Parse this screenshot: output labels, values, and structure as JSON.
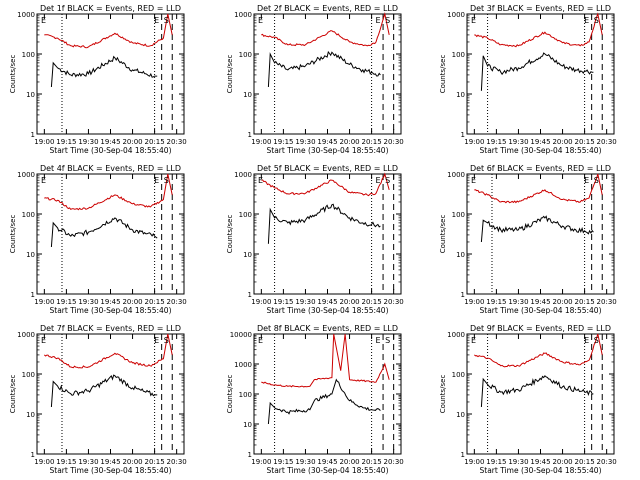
{
  "chart_data": [
    {
      "type": "line",
      "title": "Det 1f BLACK = Events, RED = LLD",
      "xlabel": "Start Time (30-Sep-04 18:55:40)",
      "ylabel": "Counts/sec",
      "x_ticks": [
        "19:00",
        "19:15",
        "19:30",
        "19:45",
        "20:00",
        "20:15",
        "20:30"
      ],
      "y_ticks": [
        "1",
        "10",
        "100",
        "1000"
      ],
      "ylim": [
        1,
        1000
      ],
      "xlim": [
        "18:55",
        "20:35"
      ],
      "markers": [
        "E",
        "S"
      ],
      "series": [
        {
          "name": "Events",
          "color": "#000000",
          "x": [
            19.08,
            19.1,
            19.15,
            19.3,
            19.5,
            19.8,
            20.0,
            20.15,
            20.25,
            20.28
          ],
          "values": [
            15,
            60,
            45,
            30,
            32,
            80,
            40,
            32,
            28,
            28
          ]
        },
        {
          "name": "LLD",
          "color": "#cc0000",
          "x": [
            19.0,
            19.15,
            19.3,
            19.5,
            19.8,
            20.0,
            20.2,
            20.35,
            20.4,
            20.45
          ],
          "values": [
            300,
            250,
            160,
            150,
            330,
            190,
            160,
            250,
            1000,
            300
          ]
        }
      ],
      "vlines": [
        {
          "x": 19.2,
          "style": "dotted"
        },
        {
          "x": 20.25,
          "style": "dotted"
        },
        {
          "x": 20.33,
          "style": "dashed"
        },
        {
          "x": 20.45,
          "style": "dashed"
        }
      ]
    },
    {
      "type": "line",
      "title": "Det 2f BLACK = Events, RED = LLD",
      "xlabel": "Start Time (30-Sep-04 18:55:40)",
      "ylabel": "Counts/sec",
      "x_ticks": [
        "19:00",
        "19:15",
        "19:30",
        "19:45",
        "20:00",
        "20:15",
        "20:30"
      ],
      "y_ticks": [
        "1",
        "10",
        "100",
        "1000"
      ],
      "ylim": [
        1,
        1000
      ],
      "xlim": [
        "18:55",
        "20:35"
      ],
      "markers": [
        "E",
        "S"
      ],
      "series": [
        {
          "name": "Events",
          "color": "#000000",
          "x": [
            19.08,
            19.1,
            19.15,
            19.3,
            19.5,
            19.8,
            20.0,
            20.15,
            20.25,
            20.35
          ],
          "values": [
            15,
            100,
            60,
            40,
            50,
            110,
            55,
            40,
            35,
            30
          ]
        },
        {
          "name": "LLD",
          "color": "#cc0000",
          "x": [
            19.0,
            19.15,
            19.3,
            19.5,
            19.8,
            20.0,
            20.2,
            20.3,
            20.4,
            20.45
          ],
          "values": [
            300,
            260,
            170,
            170,
            380,
            200,
            160,
            200,
            1000,
            300
          ]
        }
      ],
      "vlines": [
        {
          "x": 19.15,
          "style": "dotted"
        },
        {
          "x": 20.25,
          "style": "dotted"
        },
        {
          "x": 20.38,
          "style": "dashed"
        },
        {
          "x": 20.5,
          "style": "dashed"
        }
      ]
    },
    {
      "type": "line",
      "title": "Det 3f BLACK = Events, RED = LLD",
      "xlabel": "Start Time (30-Sep-04 18:55:40)",
      "ylabel": "Counts/sec",
      "x_ticks": [
        "19:00",
        "19:15",
        "19:30",
        "19:45",
        "20:00",
        "20:15",
        "20:30"
      ],
      "y_ticks": [
        "1",
        "10",
        "100",
        "1000"
      ],
      "ylim": [
        1,
        1000
      ],
      "xlim": [
        "18:55",
        "20:35"
      ],
      "markers": [
        "E",
        "S"
      ],
      "series": [
        {
          "name": "Events",
          "color": "#000000",
          "x": [
            19.08,
            19.1,
            19.15,
            19.3,
            19.5,
            19.8,
            20.0,
            20.15,
            20.25,
            20.35
          ],
          "values": [
            12,
            90,
            50,
            35,
            45,
            100,
            50,
            40,
            38,
            35
          ]
        },
        {
          "name": "LLD",
          "color": "#cc0000",
          "x": [
            19.0,
            19.15,
            19.3,
            19.5,
            19.8,
            20.0,
            20.2,
            20.3,
            20.4,
            20.45
          ],
          "values": [
            300,
            250,
            170,
            160,
            350,
            190,
            160,
            200,
            1000,
            300
          ]
        }
      ],
      "vlines": [
        {
          "x": 19.15,
          "style": "dotted"
        },
        {
          "x": 20.25,
          "style": "dotted"
        },
        {
          "x": 20.33,
          "style": "dashed"
        },
        {
          "x": 20.45,
          "style": "dashed"
        }
      ]
    },
    {
      "type": "line",
      "title": "Det 4f BLACK = Events, RED = LLD",
      "xlabel": "Start Time (30-Sep-04 18:55:40)",
      "ylabel": "Counts/sec",
      "x_ticks": [
        "19:00",
        "19:15",
        "19:30",
        "19:45",
        "20:00",
        "20:15",
        "20:30"
      ],
      "y_ticks": [
        "1",
        "10",
        "100",
        "1000"
      ],
      "ylim": [
        1,
        1000
      ],
      "xlim": [
        "18:55",
        "20:35"
      ],
      "markers": [
        "E",
        "S"
      ],
      "series": [
        {
          "name": "Events",
          "color": "#000000",
          "x": [
            19.08,
            19.1,
            19.15,
            19.3,
            19.5,
            19.8,
            20.0,
            20.15,
            20.25,
            20.28
          ],
          "values": [
            15,
            60,
            45,
            28,
            35,
            80,
            40,
            32,
            28,
            25
          ]
        },
        {
          "name": "LLD",
          "color": "#cc0000",
          "x": [
            19.0,
            19.15,
            19.3,
            19.5,
            19.8,
            20.0,
            20.2,
            20.35,
            20.4,
            20.45
          ],
          "values": [
            250,
            220,
            130,
            140,
            300,
            180,
            150,
            230,
            1000,
            300
          ]
        }
      ],
      "vlines": [
        {
          "x": 19.2,
          "style": "dotted"
        },
        {
          "x": 20.25,
          "style": "dotted"
        },
        {
          "x": 20.33,
          "style": "dashed"
        },
        {
          "x": 20.45,
          "style": "dashed"
        }
      ]
    },
    {
      "type": "line",
      "title": "Det 5f BLACK = Events, RED = LLD",
      "xlabel": "Start Time (30-Sep-04 18:55:40)",
      "ylabel": "Counts/sec",
      "x_ticks": [
        "19:00",
        "19:15",
        "19:30",
        "19:45",
        "20:00",
        "20:15",
        "20:30"
      ],
      "y_ticks": [
        "1",
        "10",
        "100",
        "1000"
      ],
      "ylim": [
        1,
        1000
      ],
      "xlim": [
        "18:55",
        "20:35"
      ],
      "markers": [
        "E",
        "S"
      ],
      "series": [
        {
          "name": "Events",
          "color": "#000000",
          "x": [
            19.08,
            19.1,
            19.15,
            19.3,
            19.5,
            19.8,
            20.0,
            20.15,
            20.25,
            20.35
          ],
          "values": [
            18,
            130,
            80,
            60,
            70,
            170,
            80,
            60,
            55,
            50
          ]
        },
        {
          "name": "LLD",
          "color": "#cc0000",
          "x": [
            19.0,
            19.15,
            19.3,
            19.5,
            19.8,
            20.0,
            20.2,
            20.3,
            20.4,
            20.45
          ],
          "values": [
            700,
            450,
            320,
            330,
            700,
            350,
            300,
            330,
            1000,
            400
          ]
        }
      ],
      "vlines": [
        {
          "x": 19.15,
          "style": "dotted"
        },
        {
          "x": 20.25,
          "style": "dotted"
        },
        {
          "x": 20.38,
          "style": "dashed"
        },
        {
          "x": 20.5,
          "style": "dashed"
        }
      ]
    },
    {
      "type": "line",
      "title": "Det 6f BLACK = Events, RED = LLD",
      "xlabel": "Start Time (30-Sep-04 18:55:40)",
      "ylabel": "Counts/sec",
      "x_ticks": [
        "19:00",
        "19:15",
        "19:30",
        "19:45",
        "20:00",
        "20:15",
        "20:30"
      ],
      "y_ticks": [
        "1",
        "10",
        "100",
        "1000"
      ],
      "ylim": [
        1,
        1000
      ],
      "xlim": [
        "18:55",
        "20:35"
      ],
      "markers": [
        "E",
        "S"
      ],
      "series": [
        {
          "name": "Events",
          "color": "#000000",
          "x": [
            19.08,
            19.1,
            19.15,
            19.3,
            19.5,
            19.8,
            20.0,
            20.15,
            20.25,
            20.35
          ],
          "values": [
            20,
            70,
            60,
            40,
            40,
            80,
            50,
            40,
            38,
            35
          ]
        },
        {
          "name": "LLD",
          "color": "#cc0000",
          "x": [
            19.0,
            19.15,
            19.3,
            19.5,
            19.8,
            20.0,
            20.2,
            20.3,
            20.4,
            20.45
          ],
          "values": [
            400,
            300,
            200,
            200,
            400,
            230,
            200,
            250,
            1000,
            300
          ]
        }
      ],
      "vlines": [
        {
          "x": 19.2,
          "style": "dotted"
        },
        {
          "x": 20.25,
          "style": "dotted"
        },
        {
          "x": 20.33,
          "style": "dashed"
        },
        {
          "x": 20.45,
          "style": "dashed"
        }
      ]
    },
    {
      "type": "line",
      "title": "Det 7f BLACK = Events, RED = LLD",
      "xlabel": "Start Time (30-Sep-04 18:55:40)",
      "ylabel": "Counts/sec",
      "x_ticks": [
        "19:00",
        "19:15",
        "19:30",
        "19:45",
        "20:00",
        "20:15",
        "20:30"
      ],
      "y_ticks": [
        "1",
        "10",
        "100",
        "1000"
      ],
      "ylim": [
        1,
        1000
      ],
      "xlim": [
        "18:55",
        "20:35"
      ],
      "markers": [
        "E",
        "S"
      ],
      "series": [
        {
          "name": "Events",
          "color": "#000000",
          "x": [
            19.08,
            19.1,
            19.15,
            19.3,
            19.5,
            19.8,
            20.0,
            20.15,
            20.25,
            20.28
          ],
          "values": [
            15,
            65,
            50,
            32,
            38,
            90,
            45,
            35,
            30,
            30
          ]
        },
        {
          "name": "LLD",
          "color": "#cc0000",
          "x": [
            19.0,
            19.15,
            19.3,
            19.5,
            19.8,
            20.0,
            20.2,
            20.35,
            20.4,
            20.45
          ],
          "values": [
            300,
            250,
            150,
            150,
            330,
            190,
            160,
            240,
            1000,
            300
          ]
        }
      ],
      "vlines": [
        {
          "x": 19.2,
          "style": "dotted"
        },
        {
          "x": 20.25,
          "style": "dotted"
        },
        {
          "x": 20.33,
          "style": "dashed"
        },
        {
          "x": 20.45,
          "style": "dashed"
        }
      ]
    },
    {
      "type": "line",
      "title": "Det 8f BLACK = Events, RED = LLD",
      "xlabel": "Start Time (30-Sep-04 18:55:40)",
      "ylabel": "Counts/sec",
      "x_ticks": [
        "19:00",
        "19:15",
        "19:30",
        "19:45",
        "20:00",
        "20:15",
        "20:30"
      ],
      "y_ticks": [
        "1",
        "10",
        "100",
        "1000",
        "10000"
      ],
      "ylim": [
        1,
        10000
      ],
      "xlim": [
        "18:55",
        "20:35"
      ],
      "markers": [
        "E",
        "S"
      ],
      "series": [
        {
          "name": "Events",
          "color": "#000000",
          "x": [
            19.08,
            19.1,
            19.15,
            19.3,
            19.55,
            19.6,
            19.8,
            19.85,
            20.0,
            20.15,
            20.25,
            20.35
          ],
          "values": [
            10,
            50,
            35,
            25,
            30,
            60,
            100,
            300,
            60,
            35,
            30,
            28
          ]
        },
        {
          "name": "LLD",
          "color": "#cc0000",
          "x": [
            19.0,
            19.15,
            19.3,
            19.55,
            19.6,
            19.8,
            19.82,
            19.9,
            19.95,
            20.0,
            20.3,
            20.4,
            20.45
          ],
          "values": [
            250,
            200,
            180,
            180,
            300,
            350,
            10000,
            600,
            10000,
            300,
            250,
            1000,
            300
          ]
        }
      ],
      "vlines": [
        {
          "x": 19.15,
          "style": "dotted"
        },
        {
          "x": 20.25,
          "style": "dotted"
        },
        {
          "x": 20.38,
          "style": "dashed"
        },
        {
          "x": 20.5,
          "style": "dashed"
        }
      ]
    },
    {
      "type": "line",
      "title": "Det 9f BLACK = Events, RED = LLD",
      "xlabel": "Start Time (30-Sep-04 18:55:40)",
      "ylabel": "Counts/sec",
      "x_ticks": [
        "19:00",
        "19:15",
        "19:30",
        "19:45",
        "20:00",
        "20:15",
        "20:30"
      ],
      "y_ticks": [
        "1",
        "10",
        "100",
        "1000"
      ],
      "ylim": [
        1,
        1000
      ],
      "xlim": [
        "18:55",
        "20:35"
      ],
      "markers": [
        "E",
        "S"
      ],
      "series": [
        {
          "name": "Events",
          "color": "#000000",
          "x": [
            19.08,
            19.1,
            19.15,
            19.3,
            19.5,
            19.8,
            20.0,
            20.15,
            20.25,
            20.35
          ],
          "values": [
            15,
            75,
            55,
            35,
            40,
            90,
            48,
            40,
            35,
            32
          ]
        },
        {
          "name": "LLD",
          "color": "#cc0000",
          "x": [
            19.0,
            19.15,
            19.3,
            19.5,
            19.8,
            20.0,
            20.2,
            20.3,
            20.4,
            20.45
          ],
          "values": [
            300,
            250,
            160,
            160,
            330,
            200,
            170,
            220,
            1000,
            300
          ]
        }
      ],
      "vlines": [
        {
          "x": 19.15,
          "style": "dotted"
        },
        {
          "x": 20.25,
          "style": "dotted"
        },
        {
          "x": 20.33,
          "style": "dashed"
        },
        {
          "x": 20.45,
          "style": "dashed"
        }
      ]
    }
  ]
}
